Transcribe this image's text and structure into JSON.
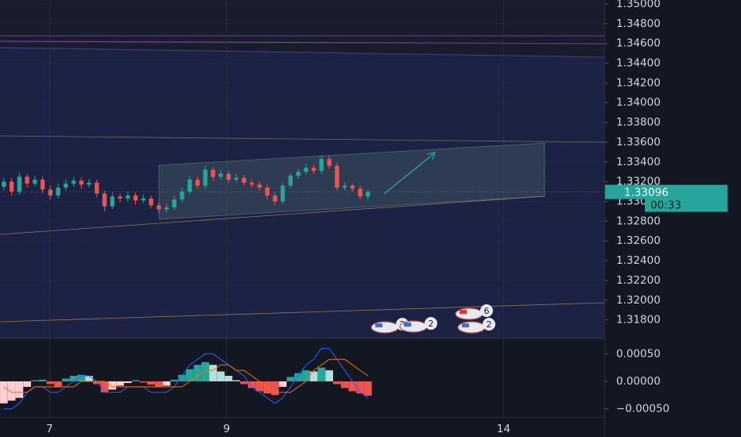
{
  "chart_data": [
    {
      "type": "candlestick",
      "up_color": "#26a69a",
      "down_color": "#ef5350",
      "xlim": [
        -0.5,
        77.5
      ],
      "xticks": [
        {
          "value": 5.9,
          "label": "7"
        },
        {
          "value": 28.75,
          "label": "9"
        },
        {
          "value": 64.5,
          "label": "14"
        }
      ],
      "ylim": [
        1.3162,
        1.3504
      ],
      "yticks": [
        {
          "value": 1.318,
          "label": "1.31800"
        },
        {
          "value": 1.32,
          "label": "1.32000"
        },
        {
          "value": 1.322,
          "label": "1.32200"
        },
        {
          "value": 1.324,
          "label": "1.32400"
        },
        {
          "value": 1.326,
          "label": "1.32600"
        },
        {
          "value": 1.328,
          "label": "1.32800"
        },
        {
          "value": 1.33,
          "label": "1.33000"
        },
        {
          "value": 1.332,
          "label": "1.33200"
        },
        {
          "value": 1.334,
          "label": "1.33400"
        },
        {
          "value": 1.336,
          "label": "1.33600"
        },
        {
          "value": 1.338,
          "label": "1.33800"
        },
        {
          "value": 1.34,
          "label": "1.34000"
        },
        {
          "value": 1.342,
          "label": "1.34200"
        },
        {
          "value": 1.344,
          "label": "1.34400"
        },
        {
          "value": 1.346,
          "label": "1.34600"
        },
        {
          "value": 1.348,
          "label": "1.34800"
        },
        {
          "value": 1.35,
          "label": "1.35000"
        }
      ],
      "grid": true,
      "countdown": "00:33",
      "events": [
        "2",
        "2",
        "6",
        "2"
      ],
      "open": [
        1.3315,
        1.332,
        1.331,
        1.3325,
        1.3318,
        1.3322,
        1.3312,
        1.3306,
        1.3314,
        1.3318,
        1.3321,
        1.3317,
        1.3319,
        1.3308,
        1.3295,
        1.3305,
        1.3303,
        1.3306,
        1.3301,
        1.3303,
        1.3296,
        1.3292,
        1.3294,
        1.3302,
        1.331,
        1.3322,
        1.3316,
        1.3332,
        1.3325,
        1.3328,
        1.3322,
        1.3324,
        1.3319,
        1.3317,
        1.3314,
        1.3306,
        1.33,
        1.3316,
        1.3326,
        1.333,
        1.3334,
        1.3331,
        1.3343,
        1.3336,
        1.3314,
        1.3316,
        1.3313,
        1.3305
      ],
      "high": [
        1.3324,
        1.3324,
        1.3329,
        1.3328,
        1.3326,
        1.3325,
        1.3316,
        1.3318,
        1.3322,
        1.3325,
        1.3324,
        1.3323,
        1.3322,
        1.3311,
        1.3309,
        1.3308,
        1.331,
        1.3309,
        1.3307,
        1.3306,
        1.3299,
        1.3298,
        1.3306,
        1.3314,
        1.3326,
        1.3325,
        1.3337,
        1.3335,
        1.3332,
        1.3331,
        1.3328,
        1.3327,
        1.3322,
        1.332,
        1.3317,
        1.3309,
        1.3319,
        1.3329,
        1.3333,
        1.3338,
        1.3337,
        1.3347,
        1.3346,
        1.3339,
        1.3319,
        1.3318,
        1.3316,
        1.3312
      ],
      "low": [
        1.3311,
        1.3306,
        1.3307,
        1.3314,
        1.3315,
        1.3308,
        1.3302,
        1.3303,
        1.3311,
        1.3315,
        1.3313,
        1.3314,
        1.3304,
        1.329,
        1.3292,
        1.3299,
        1.33,
        1.3297,
        1.3298,
        1.3293,
        1.3288,
        1.3289,
        1.3291,
        1.3299,
        1.3307,
        1.3313,
        1.3313,
        1.3321,
        1.3322,
        1.3319,
        1.3319,
        1.3316,
        1.3314,
        1.3311,
        1.3302,
        1.3296,
        1.3297,
        1.3313,
        1.3323,
        1.3327,
        1.3328,
        1.3328,
        1.3333,
        1.3311,
        1.3311,
        1.331,
        1.3302,
        1.3301
      ],
      "close": [
        1.332,
        1.331,
        1.3325,
        1.3318,
        1.3322,
        1.3312,
        1.3306,
        1.3314,
        1.3318,
        1.3321,
        1.3317,
        1.3319,
        1.3308,
        1.3295,
        1.3305,
        1.3303,
        1.3306,
        1.3301,
        1.3303,
        1.3296,
        1.3292,
        1.3294,
        1.3302,
        1.331,
        1.3322,
        1.3316,
        1.3332,
        1.3325,
        1.3328,
        1.3322,
        1.3324,
        1.3319,
        1.3317,
        1.3314,
        1.3306,
        1.33,
        1.3316,
        1.3326,
        1.333,
        1.3334,
        1.3331,
        1.3343,
        1.3336,
        1.3314,
        1.3316,
        1.3313,
        1.3305,
        1.33096
      ]
    },
    {
      "type": "macd",
      "ylim": [
        -0.00065,
        0.00075
      ],
      "yticks": [
        {
          "value": 0.0005,
          "label": "0.00050"
        },
        {
          "value": 0,
          "label": "0.00000"
        },
        {
          "value": -0.0005,
          "label": "−0.00050"
        }
      ],
      "hist_colors": [
        "#26a69a",
        "#b2dfdb",
        "#ffcdd2",
        "#ef5350"
      ],
      "histogram": [
        -0.0004,
        -0.00035,
        -0.0003,
        -0.0001,
        2e-05,
        3e-05,
        -5e-05,
        -0.0001,
        5e-05,
        0.0001,
        0.00012,
        0.0001,
        -5e-05,
        -0.0002,
        -0.00015,
        -8e-05,
        -3e-05,
        2e-05,
        -2e-05,
        -6e-05,
        -0.0001,
        -8e-05,
        3e-05,
        0.00012,
        0.00022,
        0.0003,
        0.00035,
        0.0003,
        0.00018,
        0.0001,
        2e-05,
        -5e-05,
        -0.00012,
        -0.00018,
        -0.00022,
        -0.00025,
        -0.0001,
        8e-05,
        0.00015,
        0.0002,
        0.00018,
        0.00025,
        0.0002,
        -5e-05,
        -0.00012,
        -0.00018,
        -0.00022,
        -0.00026
      ],
      "series": [
        {
          "color": "#2962ff",
          "values": [
            -0.0005,
            -0.0005,
            -0.0004,
            -0.0002,
            -0.0001,
            -0.0001,
            -0.0002,
            -0.0002,
            -0.0001,
            0.0,
            0.0001,
            0.0001,
            0.0,
            -0.0002,
            -0.0002,
            -0.0002,
            -0.0001,
            -0.0001,
            -0.0001,
            -0.0002,
            -0.0002,
            -0.0002,
            -0.0001,
            0.0001,
            0.0003,
            0.0004,
            0.0005,
            0.0005,
            0.0004,
            0.0003,
            0.0002,
            0.0001,
            -0.0001,
            -0.0002,
            -0.0003,
            -0.0004,
            -0.0003,
            -0.0001,
            0.0001,
            0.0003,
            0.0004,
            0.0006,
            0.0006,
            0.0004,
            0.0002,
            0.0,
            -0.0002,
            -0.0003
          ]
        },
        {
          "color": "#ff6d00",
          "values": [
            -0.0001,
            -0.0002,
            -0.0002,
            -0.0002,
            -0.0001,
            -0.0001,
            -0.0001,
            -0.0001,
            -0.0001,
            -0.0001,
            0.0,
            0.0,
            0.0,
            0.0,
            -0.0001,
            -0.0001,
            -0.0001,
            -0.0001,
            -0.0001,
            -0.0001,
            -0.0001,
            -0.0001,
            -0.0001,
            -0.0001,
            0.0,
            0.0001,
            0.0002,
            0.0002,
            0.0003,
            0.0003,
            0.0002,
            0.0002,
            0.0001,
            0.0,
            -0.0001,
            -0.0002,
            -0.0002,
            -0.0002,
            -0.0001,
            0.0,
            0.0002,
            0.0003,
            0.0004,
            0.0004,
            0.0004,
            0.0003,
            0.0002,
            0.0001
          ]
        }
      ]
    }
  ]
}
